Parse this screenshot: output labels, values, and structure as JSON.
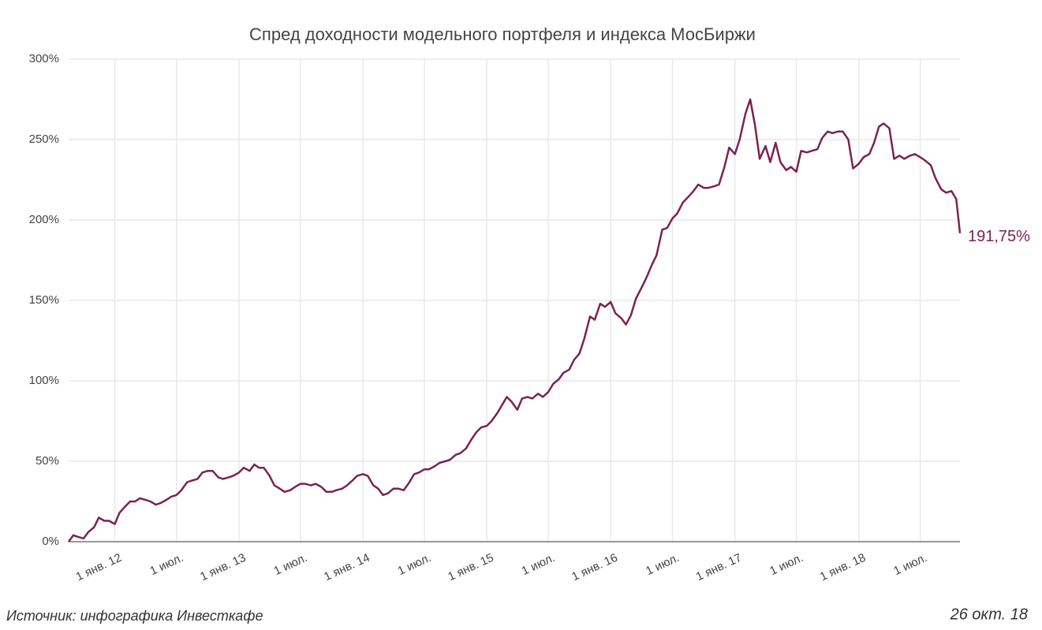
{
  "chart_data": {
    "type": "line",
    "title": "Спред доходности модельного портфеля и индекса МосБиржи",
    "source": "Источник: инфографика Инвесткафе",
    "date": "26 окт. 18",
    "color": "#7a2352",
    "grid": true,
    "last_value_label": "191,75%",
    "xlim": [
      "2011-08-18",
      "2018-10-26"
    ],
    "ylim": [
      0,
      300
    ],
    "yticks": [
      {
        "value": 0,
        "label": "0%"
      },
      {
        "value": 50,
        "label": "50%"
      },
      {
        "value": 100,
        "label": "100%"
      },
      {
        "value": 150,
        "label": "150%"
      },
      {
        "value": 200,
        "label": "200%"
      },
      {
        "value": 250,
        "label": "250%"
      },
      {
        "value": 300,
        "label": "300%"
      }
    ],
    "xticks": [
      {
        "value": "2012-01-01",
        "label": "1 янв. 12"
      },
      {
        "value": "2012-07-01",
        "label": "1 июл."
      },
      {
        "value": "2013-01-01",
        "label": "1 янв. 13"
      },
      {
        "value": "2013-07-01",
        "label": "1 июл."
      },
      {
        "value": "2014-01-01",
        "label": "1 янв. 14"
      },
      {
        "value": "2014-07-01",
        "label": "1 июл."
      },
      {
        "value": "2015-01-01",
        "label": "1 янв. 15"
      },
      {
        "value": "2015-07-01",
        "label": "1 июл."
      },
      {
        "value": "2016-01-01",
        "label": "1 янв. 16"
      },
      {
        "value": "2016-07-01",
        "label": "1 июл."
      },
      {
        "value": "2017-01-01",
        "label": "1 янв. 17"
      },
      {
        "value": "2017-07-01",
        "label": "1 июл."
      },
      {
        "value": "2018-01-01",
        "label": "1 янв. 18"
      },
      {
        "value": "2018-07-01",
        "label": "1 июл."
      }
    ],
    "x": [
      "2011-08-18",
      "2011-09-01",
      "2011-09-15",
      "2011-10-01",
      "2011-10-15",
      "2011-11-01",
      "2011-11-15",
      "2011-12-01",
      "2011-12-15",
      "2012-01-01",
      "2012-01-15",
      "2012-02-01",
      "2012-02-15",
      "2012-03-01",
      "2012-03-15",
      "2012-04-01",
      "2012-04-15",
      "2012-05-01",
      "2012-05-15",
      "2012-06-01",
      "2012-06-15",
      "2012-07-01",
      "2012-07-15",
      "2012-08-01",
      "2012-08-15",
      "2012-09-01",
      "2012-09-15",
      "2012-10-01",
      "2012-10-15",
      "2012-11-01",
      "2012-11-15",
      "2012-12-01",
      "2012-12-15",
      "2013-01-01",
      "2013-01-15",
      "2013-02-01",
      "2013-02-15",
      "2013-03-01",
      "2013-03-15",
      "2013-04-01",
      "2013-04-15",
      "2013-05-01",
      "2013-05-15",
      "2013-06-01",
      "2013-06-15",
      "2013-07-01",
      "2013-07-15",
      "2013-08-01",
      "2013-08-15",
      "2013-09-01",
      "2013-09-15",
      "2013-10-01",
      "2013-10-15",
      "2013-11-01",
      "2013-11-15",
      "2013-12-01",
      "2013-12-15",
      "2014-01-01",
      "2014-01-15",
      "2014-02-01",
      "2014-02-15",
      "2014-03-01",
      "2014-03-15",
      "2014-04-01",
      "2014-04-15",
      "2014-05-01",
      "2014-05-15",
      "2014-06-01",
      "2014-06-15",
      "2014-07-01",
      "2014-07-15",
      "2014-08-01",
      "2014-08-15",
      "2014-09-01",
      "2014-09-15",
      "2014-10-01",
      "2014-10-15",
      "2014-11-01",
      "2014-11-15",
      "2014-12-01",
      "2014-12-15",
      "2015-01-01",
      "2015-01-15",
      "2015-02-01",
      "2015-02-15",
      "2015-03-01",
      "2015-03-15",
      "2015-04-01",
      "2015-04-15",
      "2015-05-01",
      "2015-05-15",
      "2015-06-01",
      "2015-06-15",
      "2015-07-01",
      "2015-07-15",
      "2015-08-01",
      "2015-08-15",
      "2015-09-01",
      "2015-09-15",
      "2015-10-01",
      "2015-10-15",
      "2015-11-01",
      "2015-11-15",
      "2015-12-01",
      "2015-12-15",
      "2016-01-01",
      "2016-01-15",
      "2016-02-01",
      "2016-02-15",
      "2016-03-01",
      "2016-03-15",
      "2016-04-01",
      "2016-04-15",
      "2016-05-01",
      "2016-05-15",
      "2016-06-01",
      "2016-06-15",
      "2016-07-01",
      "2016-07-15",
      "2016-08-01",
      "2016-08-15",
      "2016-09-01",
      "2016-09-15",
      "2016-10-01",
      "2016-10-15",
      "2016-11-01",
      "2016-11-15",
      "2016-12-01",
      "2016-12-15",
      "2017-01-01",
      "2017-01-15",
      "2017-02-01",
      "2017-02-15",
      "2017-03-01",
      "2017-03-15",
      "2017-04-01",
      "2017-04-15",
      "2017-05-01",
      "2017-05-15",
      "2017-06-01",
      "2017-06-15",
      "2017-07-01",
      "2017-07-15",
      "2017-08-01",
      "2017-08-15",
      "2017-09-01",
      "2017-09-15",
      "2017-10-01",
      "2017-10-15",
      "2017-11-01",
      "2017-11-15",
      "2017-12-01",
      "2017-12-15",
      "2018-01-01",
      "2018-01-15",
      "2018-02-01",
      "2018-02-15",
      "2018-03-01",
      "2018-03-15",
      "2018-04-01",
      "2018-04-15",
      "2018-05-01",
      "2018-05-15",
      "2018-06-01",
      "2018-06-15",
      "2018-07-01",
      "2018-07-15",
      "2018-08-01",
      "2018-08-15",
      "2018-09-01",
      "2018-09-15",
      "2018-10-01",
      "2018-10-15",
      "2018-10-26"
    ],
    "values": [
      0,
      4,
      3,
      2,
      6,
      9,
      15,
      13,
      13,
      11,
      18,
      22,
      25,
      25,
      27,
      26,
      25,
      23,
      24,
      26,
      28,
      29,
      32,
      37,
      38,
      39,
      43,
      44,
      44,
      40,
      39,
      40,
      41,
      43,
      46,
      44,
      48,
      46,
      46,
      41,
      35,
      33,
      31,
      32,
      34,
      36,
      36,
      35,
      36,
      34,
      31,
      31,
      32,
      33,
      35,
      38,
      41,
      42,
      41,
      35,
      33,
      29,
      30,
      33,
      33,
      32,
      36,
      42,
      43,
      45,
      45,
      47,
      49,
      50,
      51,
      54,
      55,
      58,
      63,
      68,
      71,
      72,
      75,
      80,
      85,
      90,
      87,
      82,
      89,
      90,
      89,
      92,
      90,
      93,
      98,
      101,
      105,
      107,
      113,
      117,
      126,
      140,
      138,
      148,
      146,
      149,
      142,
      139,
      135,
      141,
      151,
      158,
      164,
      172,
      178,
      194,
      195,
      201,
      204,
      211,
      214,
      218,
      222,
      220,
      220,
      221,
      222,
      233,
      245,
      241,
      250,
      266,
      275,
      259,
      238,
      246,
      236,
      248,
      236,
      231,
      233,
      230,
      243,
      242,
      243,
      244,
      251,
      255,
      254,
      255,
      255,
      250,
      232,
      235,
      239,
      241,
      248,
      258,
      260,
      257,
      238,
      240,
      238,
      240,
      241,
      239,
      237,
      234,
      226,
      219,
      217,
      218,
      213,
      191.75
    ]
  }
}
